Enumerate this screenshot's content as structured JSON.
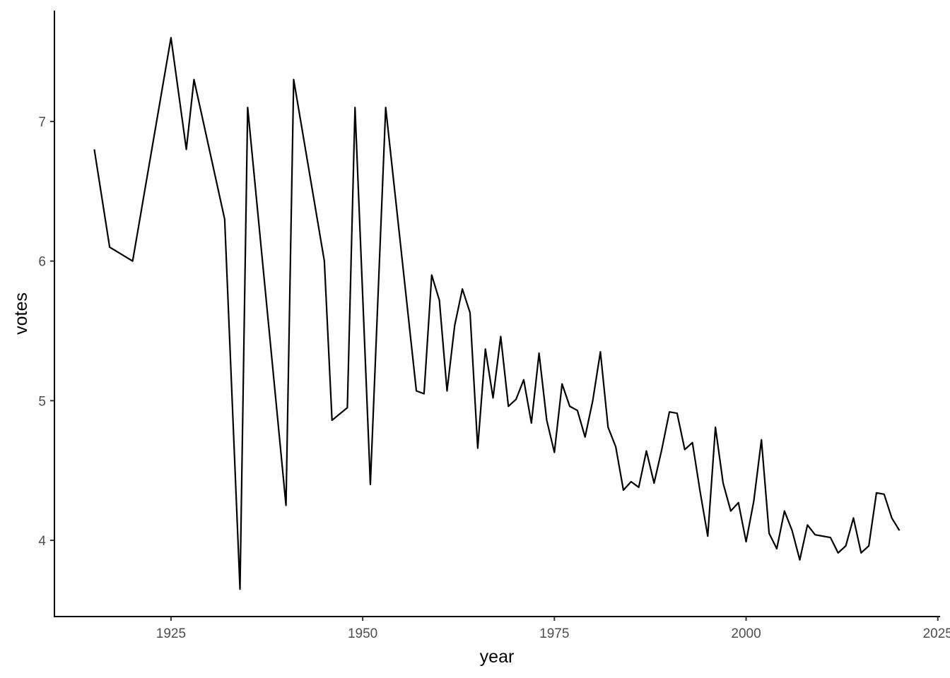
{
  "chart_data": {
    "type": "line",
    "x_label": "year",
    "y_label": "votes",
    "xlim": [
      1909.8,
      2025.3
    ],
    "ylim": [
      3.454,
      7.794
    ],
    "xticks": [
      1925,
      1950,
      1975,
      2000,
      2025
    ],
    "yticks": [
      4,
      5,
      6,
      7
    ],
    "grid": false,
    "series": [
      {
        "color": "#000000",
        "x": [
          1915,
          1917,
          1920,
          1925,
          1927,
          1928,
          1932,
          1934,
          1935,
          1940,
          1941,
          1945,
          1946,
          1948,
          1949,
          1951,
          1953,
          1957,
          1958,
          1959,
          1960,
          1961,
          1962,
          1963,
          1964,
          1965,
          1966,
          1967,
          1968,
          1969,
          1970,
          1971,
          1972,
          1973,
          1974,
          1975,
          1976,
          1977,
          1978,
          1979,
          1980,
          1981,
          1982,
          1983,
          1984,
          1985,
          1986,
          1987,
          1988,
          1989,
          1990,
          1991,
          1992,
          1993,
          1994,
          1995,
          1996,
          1997,
          1998,
          1999,
          2000,
          2001,
          2002,
          2003,
          2004,
          2005,
          2006,
          2007,
          2008,
          2009,
          2010,
          2011,
          2012,
          2013,
          2014,
          2015,
          2016,
          2017,
          2018,
          2019,
          2020
        ],
        "values": [
          6.8,
          6.1,
          6.0,
          7.6,
          6.8,
          7.3,
          6.3,
          3.65,
          7.1,
          4.25,
          7.3,
          6.0,
          4.86,
          4.95,
          7.1,
          4.4,
          7.1,
          5.07,
          5.05,
          5.9,
          5.72,
          5.07,
          5.54,
          5.8,
          5.63,
          4.66,
          5.37,
          5.02,
          5.46,
          4.96,
          5.01,
          5.15,
          4.84,
          5.34,
          4.86,
          4.63,
          5.12,
          4.96,
          4.93,
          4.74,
          5.0,
          5.35,
          4.81,
          4.67,
          4.36,
          4.42,
          4.38,
          4.64,
          4.41,
          4.65,
          4.92,
          4.91,
          4.65,
          4.7,
          4.35,
          4.03,
          4.81,
          4.41,
          4.21,
          4.27,
          3.99,
          4.28,
          4.72,
          4.05,
          3.94,
          4.21,
          4.07,
          3.86,
          4.11,
          4.04,
          4.03,
          4.02,
          3.91,
          3.96,
          4.16,
          3.91,
          3.96,
          4.34,
          4.33,
          4.16,
          4.07
        ]
      }
    ]
  }
}
